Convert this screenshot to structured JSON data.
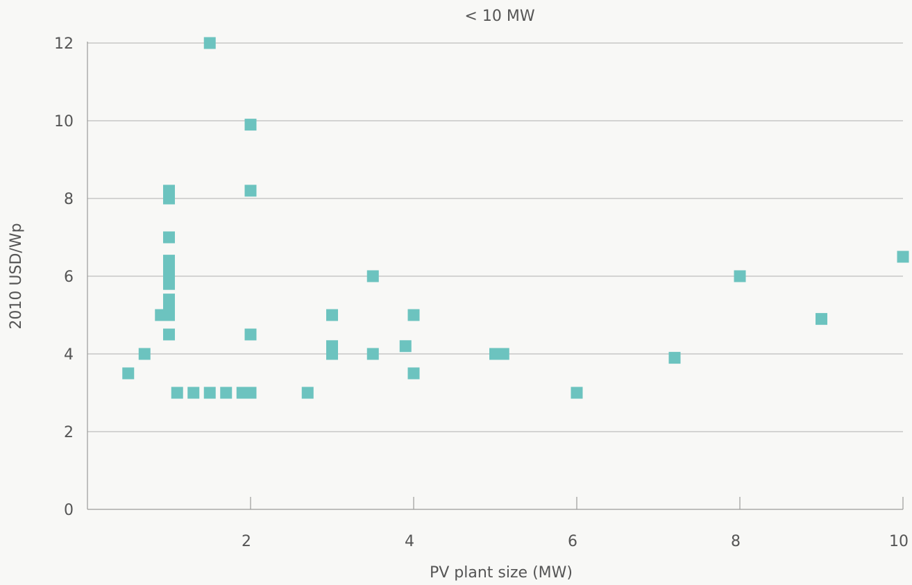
{
  "chart_data": {
    "type": "scatter",
    "title": "< 10 MW",
    "xlabel": "PV plant size (MW)",
    "ylabel": "2010 USD/Wp",
    "xlim": [
      0,
      10
    ],
    "ylim": [
      0,
      12
    ],
    "x_ticks": [
      2,
      4,
      6,
      8,
      10
    ],
    "y_ticks": [
      0,
      2,
      4,
      6,
      8,
      10,
      12
    ],
    "grid": "horizontal",
    "marker": "square",
    "color": "#6cc3bf",
    "points": [
      {
        "x": 0.5,
        "y": 3.5
      },
      {
        "x": 0.7,
        "y": 4.0
      },
      {
        "x": 0.9,
        "y": 5.0
      },
      {
        "x": 1.0,
        "y": 5.0
      },
      {
        "x": 1.0,
        "y": 4.5
      },
      {
        "x": 1.0,
        "y": 5.2
      },
      {
        "x": 1.0,
        "y": 5.4
      },
      {
        "x": 1.0,
        "y": 5.8
      },
      {
        "x": 1.0,
        "y": 6.0
      },
      {
        "x": 1.0,
        "y": 6.2
      },
      {
        "x": 1.0,
        "y": 6.4
      },
      {
        "x": 1.0,
        "y": 7.0
      },
      {
        "x": 1.0,
        "y": 8.0
      },
      {
        "x": 1.0,
        "y": 8.2
      },
      {
        "x": 1.1,
        "y": 3.0
      },
      {
        "x": 1.3,
        "y": 3.0
      },
      {
        "x": 1.5,
        "y": 3.0
      },
      {
        "x": 1.5,
        "y": 12.0
      },
      {
        "x": 1.7,
        "y": 3.0
      },
      {
        "x": 1.9,
        "y": 3.0
      },
      {
        "x": 2.0,
        "y": 3.0
      },
      {
        "x": 2.0,
        "y": 4.5
      },
      {
        "x": 2.0,
        "y": 8.2
      },
      {
        "x": 2.0,
        "y": 9.9
      },
      {
        "x": 2.7,
        "y": 3.0
      },
      {
        "x": 3.0,
        "y": 4.0
      },
      {
        "x": 3.0,
        "y": 4.2
      },
      {
        "x": 3.0,
        "y": 5.0
      },
      {
        "x": 3.5,
        "y": 4.0
      },
      {
        "x": 3.5,
        "y": 6.0
      },
      {
        "x": 3.9,
        "y": 4.2
      },
      {
        "x": 4.0,
        "y": 3.5
      },
      {
        "x": 4.0,
        "y": 5.0
      },
      {
        "x": 5.0,
        "y": 4.0
      },
      {
        "x": 5.1,
        "y": 4.0
      },
      {
        "x": 6.0,
        "y": 3.0
      },
      {
        "x": 7.2,
        "y": 3.9
      },
      {
        "x": 8.0,
        "y": 6.0
      },
      {
        "x": 9.0,
        "y": 4.9
      },
      {
        "x": 10.0,
        "y": 6.5
      }
    ]
  }
}
